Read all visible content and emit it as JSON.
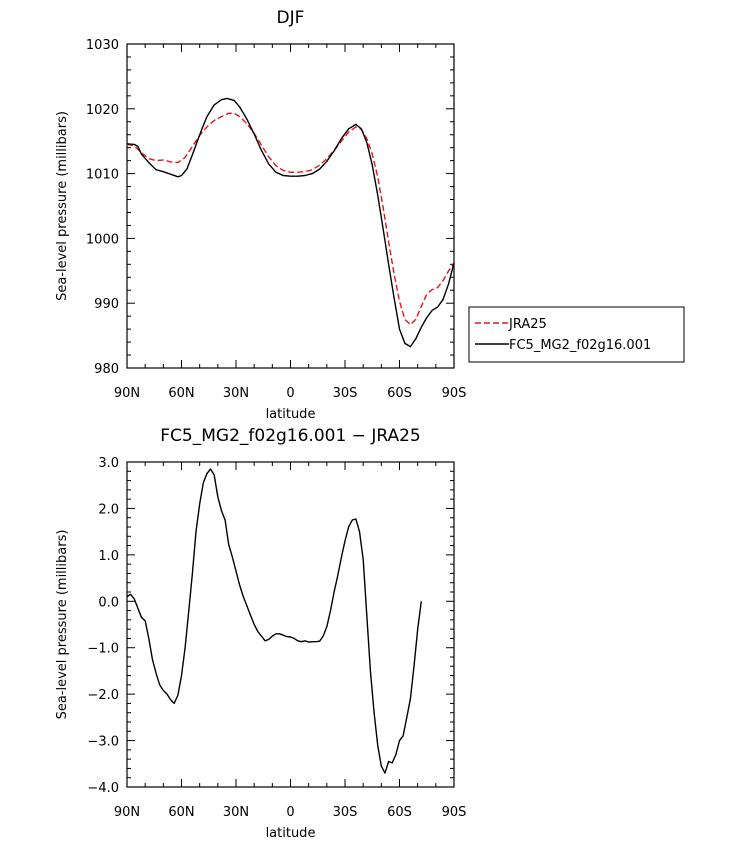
{
  "chart_data": [
    {
      "type": "line",
      "title": "DJF",
      "xlabel": "latitude",
      "ylabel": "Sea-level pressure (millibars)",
      "xlim": [
        90,
        -90
      ],
      "ylim": [
        980,
        1030
      ],
      "x_ticks": [
        90,
        60,
        30,
        0,
        -30,
        -60,
        -90
      ],
      "x_tick_labels": [
        "90N",
        "60N",
        "30N",
        "0",
        "30S",
        "60S",
        "90S"
      ],
      "y_ticks": [
        980,
        990,
        1000,
        1010,
        1020,
        1030
      ],
      "y_tick_labels": [
        "980",
        "990",
        "1000",
        "1010",
        "1020",
        "1030"
      ],
      "legend_position": "right",
      "series": [
        {
          "name": "JRA25",
          "color": "#e8141c",
          "dash": "dashed",
          "points": [
            [
              90,
              1014.5
            ],
            [
              86,
              1014.3
            ],
            [
              82,
              1013.2
            ],
            [
              78,
              1012.3
            ],
            [
              74,
              1012
            ],
            [
              70,
              1012.1
            ],
            [
              66,
              1011.8
            ],
            [
              62,
              1011.7
            ],
            [
              58,
              1012.5
            ],
            [
              54,
              1014.2
            ],
            [
              50,
              1015.9
            ],
            [
              46,
              1017.2
            ],
            [
              42,
              1018.2
            ],
            [
              38,
              1018.8
            ],
            [
              34,
              1019.3
            ],
            [
              31,
              1019.3
            ],
            [
              28,
              1018.8
            ],
            [
              24,
              1017.7
            ],
            [
              20,
              1016.2
            ],
            [
              16,
              1014.4
            ],
            [
              12,
              1012.6
            ],
            [
              8,
              1011.2
            ],
            [
              4,
              1010.5
            ],
            [
              0,
              1010.2
            ],
            [
              -4,
              1010.2
            ],
            [
              -8,
              1010.3
            ],
            [
              -12,
              1010.6
            ],
            [
              -16,
              1011.3
            ],
            [
              -20,
              1012.3
            ],
            [
              -24,
              1013.6
            ],
            [
              -28,
              1015
            ],
            [
              -32,
              1016.4
            ],
            [
              -36,
              1017.2
            ],
            [
              -39,
              1016.8
            ],
            [
              -42,
              1015.4
            ],
            [
              -45,
              1013
            ],
            [
              -48,
              1009.5
            ],
            [
              -51,
              1004.8
            ],
            [
              -54,
              999.5
            ],
            [
              -57,
              994.5
            ],
            [
              -60,
              990.3
            ],
            [
              -63,
              987.5
            ],
            [
              -66,
              986.7
            ],
            [
              -69,
              987.5
            ],
            [
              -72,
              989.5
            ],
            [
              -75,
              991.4
            ],
            [
              -78,
              992.1
            ],
            [
              -81,
              992.4
            ],
            [
              -84,
              993.5
            ],
            [
              -87,
              995
            ],
            [
              -90,
              996.2
            ]
          ]
        },
        {
          "name": "FC5_MG2_f02g16.001",
          "color": "#000000",
          "dash": "solid",
          "points": [
            [
              90,
              1014.6
            ],
            [
              86,
              1014.5
            ],
            [
              84,
              1014.2
            ],
            [
              82,
              1013
            ],
            [
              78,
              1011.7
            ],
            [
              74,
              1010.6
            ],
            [
              70,
              1010.3
            ],
            [
              66,
              1009.9
            ],
            [
              62,
              1009.5
            ],
            [
              60,
              1009.7
            ],
            [
              57,
              1010.7
            ],
            [
              54,
              1012.9
            ],
            [
              50,
              1016
            ],
            [
              46,
              1018.8
            ],
            [
              42,
              1020.6
            ],
            [
              38,
              1021.4
            ],
            [
              35,
              1021.6
            ],
            [
              31,
              1021.3
            ],
            [
              28,
              1020.3
            ],
            [
              24,
              1018.4
            ],
            [
              20,
              1016.1
            ],
            [
              16,
              1013.6
            ],
            [
              12,
              1011.5
            ],
            [
              8,
              1010.2
            ],
            [
              4,
              1009.7
            ],
            [
              0,
              1009.6
            ],
            [
              -4,
              1009.6
            ],
            [
              -8,
              1009.7
            ],
            [
              -12,
              1010
            ],
            [
              -16,
              1010.7
            ],
            [
              -20,
              1011.9
            ],
            [
              -24,
              1013.5
            ],
            [
              -28,
              1015.4
            ],
            [
              -32,
              1016.9
            ],
            [
              -36,
              1017.6
            ],
            [
              -39,
              1016.9
            ],
            [
              -42,
              1014.8
            ],
            [
              -45,
              1011.3
            ],
            [
              -48,
              1006.7
            ],
            [
              -51,
              1001.5
            ],
            [
              -54,
              996
            ],
            [
              -57,
              990.8
            ],
            [
              -60,
              986
            ],
            [
              -63,
              983.8
            ],
            [
              -66,
              983.3
            ],
            [
              -69,
              984.5
            ],
            [
              -72,
              986.3
            ],
            [
              -75,
              987.8
            ],
            [
              -78,
              988.9
            ],
            [
              -81,
              989.4
            ],
            [
              -84,
              990.6
            ],
            [
              -87,
              993
            ],
            [
              -90,
              996.2
            ]
          ]
        }
      ]
    },
    {
      "type": "line",
      "title": "FC5_MG2_f02g16.001 − JRA25",
      "xlabel": "latitude",
      "ylabel": "Sea-level pressure (millibars)",
      "xlim": [
        90,
        -90
      ],
      "ylim": [
        -4,
        3
      ],
      "x_ticks": [
        90,
        60,
        30,
        0,
        -30,
        -60,
        -90
      ],
      "x_tick_labels": [
        "90N",
        "60N",
        "30N",
        "0",
        "30S",
        "60S",
        "90S"
      ],
      "y_ticks": [
        -4,
        -3,
        -2,
        -1,
        0,
        1,
        2,
        3
      ],
      "y_tick_labels": [
        "−4.0",
        "−3.0",
        "−2.0",
        "−1.0",
        "0.0",
        "1.0",
        "2.0",
        "3.0"
      ],
      "series": [
        {
          "color": "#000000",
          "dash": "solid",
          "points": [
            [
              90,
              0.1
            ],
            [
              88,
              0.15
            ],
            [
              86,
              0.05
            ],
            [
              84,
              -0.15
            ],
            [
              82,
              -0.35
            ],
            [
              80,
              -0.42
            ],
            [
              78,
              -0.8
            ],
            [
              76,
              -1.25
            ],
            [
              74,
              -1.55
            ],
            [
              72,
              -1.8
            ],
            [
              70,
              -1.92
            ],
            [
              68,
              -2.0
            ],
            [
              66,
              -2.12
            ],
            [
              64,
              -2.2
            ],
            [
              62,
              -2.02
            ],
            [
              60,
              -1.6
            ],
            [
              58,
              -1.0
            ],
            [
              56,
              -0.2
            ],
            [
              54,
              0.6
            ],
            [
              52,
              1.5
            ],
            [
              50,
              2.1
            ],
            [
              48,
              2.55
            ],
            [
              46,
              2.75
            ],
            [
              44,
              2.85
            ],
            [
              42,
              2.72
            ],
            [
              40,
              2.25
            ],
            [
              38,
              1.95
            ],
            [
              36,
              1.75
            ],
            [
              34,
              1.22
            ],
            [
              32,
              0.95
            ],
            [
              30,
              0.65
            ],
            [
              28,
              0.35
            ],
            [
              26,
              0.1
            ],
            [
              24,
              -0.1
            ],
            [
              22,
              -0.3
            ],
            [
              20,
              -0.5
            ],
            [
              18,
              -0.65
            ],
            [
              16,
              -0.75
            ],
            [
              14,
              -0.85
            ],
            [
              12,
              -0.82
            ],
            [
              10,
              -0.75
            ],
            [
              8,
              -0.7
            ],
            [
              6,
              -0.7
            ],
            [
              4,
              -0.73
            ],
            [
              2,
              -0.76
            ],
            [
              0,
              -0.77
            ],
            [
              -2,
              -0.8
            ],
            [
              -4,
              -0.85
            ],
            [
              -6,
              -0.87
            ],
            [
              -8,
              -0.85
            ],
            [
              -10,
              -0.88
            ],
            [
              -12,
              -0.87
            ],
            [
              -14,
              -0.87
            ],
            [
              -16,
              -0.86
            ],
            [
              -18,
              -0.75
            ],
            [
              -20,
              -0.55
            ],
            [
              -22,
              -0.2
            ],
            [
              -24,
              0.2
            ],
            [
              -26,
              0.55
            ],
            [
              -28,
              0.95
            ],
            [
              -30,
              1.3
            ],
            [
              -32,
              1.6
            ],
            [
              -34,
              1.75
            ],
            [
              -36,
              1.77
            ],
            [
              -38,
              1.5
            ],
            [
              -40,
              0.9
            ],
            [
              -42,
              -0.3
            ],
            [
              -44,
              -1.5
            ],
            [
              -46,
              -2.4
            ],
            [
              -48,
              -3.1
            ],
            [
              -50,
              -3.55
            ],
            [
              -52,
              -3.7
            ],
            [
              -54,
              -3.45
            ],
            [
              -56,
              -3.48
            ],
            [
              -58,
              -3.3
            ],
            [
              -60,
              -3.0
            ],
            [
              -62,
              -2.9
            ],
            [
              -64,
              -2.5
            ],
            [
              -66,
              -2.1
            ],
            [
              -68,
              -1.4
            ],
            [
              -70,
              -0.6
            ],
            [
              -72,
              0.0
            ]
          ]
        }
      ]
    }
  ]
}
